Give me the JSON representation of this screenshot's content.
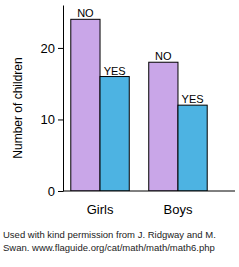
{
  "chart_data": {
    "type": "bar",
    "y_label": "Number of children",
    "categories": [
      "Girls",
      "Boys"
    ],
    "series": [
      {
        "name": "NO",
        "color": "#c9a6e8",
        "values": [
          24,
          18
        ]
      },
      {
        "name": "YES",
        "color": "#4db3e2",
        "values": [
          16,
          12
        ]
      }
    ],
    "ylim": [
      0,
      26
    ],
    "yticks": [
      0,
      10,
      20
    ],
    "grid": false,
    "annotations": [
      "Used with kind permission from J. Ridgway and M.",
      "Swan. www.flaguide.org/cat/math/math/math6.php"
    ]
  }
}
